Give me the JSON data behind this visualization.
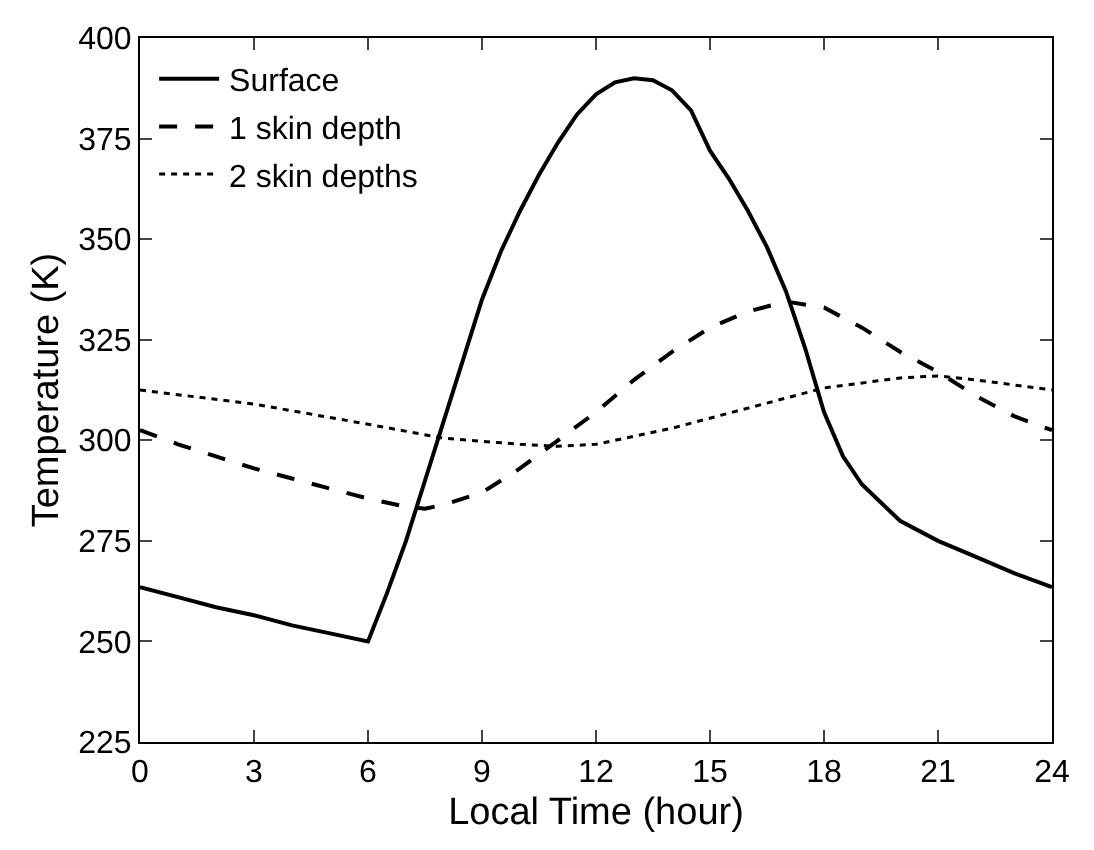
{
  "chart_data": {
    "type": "line",
    "xlabel": "Local Time (hour)",
    "ylabel": "Temperature (K)",
    "xlim": [
      0,
      24
    ],
    "xticks": [
      0,
      3,
      6,
      9,
      12,
      15,
      18,
      21,
      24
    ],
    "ylim": [
      225,
      400
    ],
    "yticks": [
      225,
      250,
      275,
      300,
      325,
      350,
      375,
      400
    ],
    "grid": false,
    "legend": "top left",
    "series": [
      {
        "name": "Surface",
        "color": "#000000",
        "line_style": "solid",
        "x": [
          0,
          1,
          2,
          3,
          4,
          5,
          6,
          6.5,
          7,
          7.5,
          8,
          8.5,
          9,
          9.5,
          10,
          10.5,
          11,
          11.5,
          12,
          12.5,
          13,
          13.5,
          14,
          14.5,
          15,
          15.5,
          16,
          16.5,
          17,
          17.5,
          18,
          18.5,
          19,
          20,
          21,
          22,
          23,
          24
        ],
        "values": [
          263.5,
          261,
          258.5,
          256.5,
          254,
          252,
          250,
          262,
          275,
          290,
          305,
          320,
          335,
          347,
          357,
          366,
          374,
          381,
          386,
          389,
          390,
          389.5,
          387,
          382,
          372,
          365,
          357,
          348,
          337,
          323,
          307,
          296,
          289,
          280,
          275,
          271,
          267,
          263.5
        ]
      },
      {
        "name": "1 skin depth",
        "color": "#000000",
        "line_style": "dashed",
        "x": [
          0,
          1,
          2,
          3,
          4,
          5,
          6,
          7,
          7.5,
          8,
          9,
          10,
          11,
          12,
          13,
          14,
          15,
          16,
          17,
          18,
          19,
          20,
          21,
          22,
          23,
          24
        ],
        "values": [
          302.5,
          299,
          296,
          293,
          290.5,
          288,
          285.5,
          283.5,
          283,
          284,
          287,
          293,
          300,
          307,
          315,
          322,
          328,
          332,
          334.5,
          333,
          328,
          322,
          317,
          311,
          306,
          302.5
        ]
      },
      {
        "name": "2 skin depths",
        "color": "#000000",
        "line_style": "dotted",
        "x": [
          0,
          3,
          6,
          8,
          10,
          11,
          12,
          14,
          16,
          18,
          20,
          21,
          22,
          24
        ],
        "values": [
          312.5,
          309,
          304,
          300.5,
          299,
          298.5,
          299,
          303,
          308,
          313,
          315.5,
          316,
          315,
          312.5
        ]
      }
    ]
  }
}
